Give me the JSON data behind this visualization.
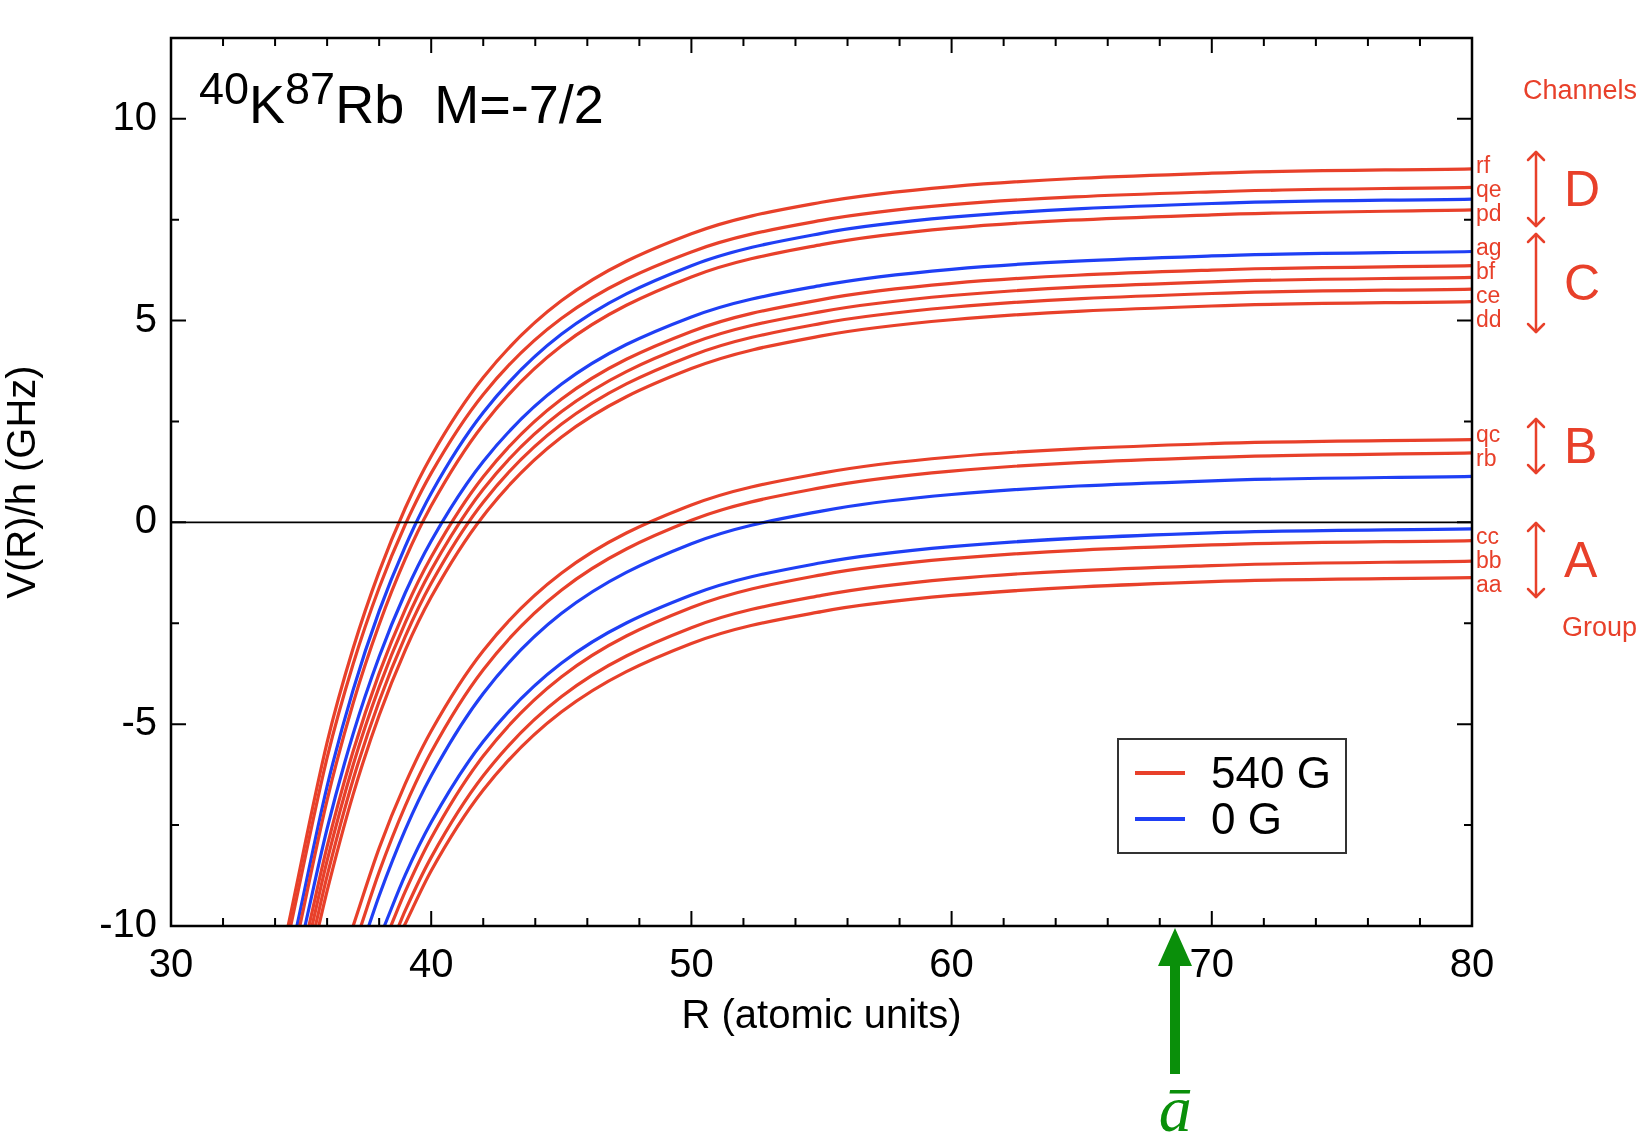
{
  "chart_data": {
    "type": "line",
    "title": "$^{40}$K$^{87}$Rb  M=-7/2",
    "xlabel": "R (atomic units)",
    "ylabel": "V(R)/h (GHz)",
    "xlim": [
      30,
      80
    ],
    "ylim": [
      -10,
      12
    ],
    "xticks": [
      30,
      {
        "value": 32,
        "label": null
      },
      {
        "value": 34,
        "label": null
      },
      {
        "value": 36,
        "label": null
      },
      {
        "value": 38,
        "label": null
      },
      40,
      {
        "value": 42,
        "label": null
      },
      {
        "value": 44,
        "label": null
      },
      {
        "value": 46,
        "label": null
      },
      {
        "value": 48,
        "label": null
      },
      50,
      {
        "value": 52,
        "label": null
      },
      {
        "value": 54,
        "label": null
      },
      {
        "value": 56,
        "label": null
      },
      {
        "value": 58,
        "label": null
      },
      60,
      {
        "value": 62,
        "label": null
      },
      {
        "value": 64,
        "label": null
      },
      {
        "value": 66,
        "label": null
      },
      {
        "value": 68,
        "label": null
      },
      70,
      {
        "value": 72,
        "label": null
      },
      {
        "value": 74,
        "label": null
      },
      {
        "value": 76,
        "label": null
      },
      {
        "value": 78,
        "label": null
      },
      80
    ],
    "yticks": [
      -10,
      {
        "value": -7.5,
        "label": null
      },
      -5,
      {
        "value": -2.5,
        "label": null
      },
      0,
      {
        "value": 2.5,
        "label": null
      },
      5,
      {
        "value": 7.5,
        "label": null
      },
      10
    ],
    "grid": false,
    "legend": "bottom right",
    "line_style": "solid",
    "ref_lines": [
      {
        "axis": "y",
        "value": 0,
        "color": "#000000"
      }
    ],
    "series": [
      {
        "name": "540 G",
        "color": "#e8402a",
        "x": [
          34.5,
          36,
          37,
          38,
          39,
          40,
          42,
          45,
          50,
          55,
          60,
          70,
          80
        ],
        "values": [
          -10,
          -5.45,
          -3.12,
          -1.22,
          0.35,
          1.64,
          3.59,
          5.49,
          7.15,
          7.93,
          8.32,
          8.65,
          8.76
        ]
      },
      {
        "color": "#e8402a",
        "x": [
          34.6,
          36,
          37,
          38,
          39,
          40,
          42,
          45,
          50,
          55,
          60,
          70,
          80
        ],
        "values": [
          -10,
          -5.83,
          -3.51,
          -1.62,
          -0.06,
          1.22,
          3.17,
          5.05,
          6.7,
          7.48,
          7.87,
          8.19,
          8.3
        ]
      },
      {
        "color": "#e8402a",
        "x": [
          34.95,
          36,
          37,
          38,
          39,
          40,
          42,
          45,
          50,
          55,
          60,
          70,
          80
        ],
        "values": [
          -10,
          -6.88,
          -4.48,
          -2.53,
          -0.91,
          0.41,
          2.42,
          4.37,
          6.08,
          6.88,
          7.29,
          7.62,
          7.74
        ]
      },
      {
        "color": "#e8402a",
        "x": [
          35.3,
          36,
          37,
          38,
          39,
          40,
          42,
          45,
          50,
          55,
          60,
          70,
          80
        ],
        "values": [
          -10,
          -8.03,
          -5.67,
          -3.74,
          -2.16,
          -0.86,
          1.13,
          3.05,
          4.73,
          5.52,
          5.92,
          6.25,
          6.36
        ]
      },
      {
        "color": "#e8402a",
        "x": [
          35.42,
          36,
          37,
          38,
          39,
          40,
          42,
          45,
          50,
          55,
          60,
          70,
          80
        ],
        "values": [
          -10,
          -8.38,
          -6.01,
          -4.08,
          -2.49,
          -1.18,
          0.82,
          2.74,
          4.43,
          5.22,
          5.62,
          5.96,
          6.07
        ]
      },
      {
        "color": "#e8402a",
        "x": [
          35.55,
          36,
          37,
          38,
          39,
          40,
          42,
          45,
          50,
          55,
          60,
          70,
          80
        ],
        "values": [
          -10,
          -8.76,
          -6.37,
          -4.43,
          -2.83,
          -1.51,
          0.5,
          2.43,
          4.13,
          4.93,
          5.33,
          5.67,
          5.78
        ]
      },
      {
        "color": "#e8402a",
        "x": [
          35.68,
          36,
          37,
          38,
          39,
          40,
          42,
          45,
          50,
          55,
          60,
          70,
          80
        ],
        "values": [
          -10,
          -9.13,
          -6.74,
          -4.78,
          -3.17,
          -1.85,
          0.16,
          2.11,
          3.81,
          4.62,
          5.02,
          5.36,
          5.47
        ]
      },
      {
        "color": "#e8402a",
        "x": [
          37.0,
          38,
          39,
          40,
          42,
          45,
          50,
          55,
          60,
          70,
          80
        ],
        "values": [
          -10,
          -8.07,
          -6.48,
          -5.17,
          -3.18,
          -1.26,
          0.43,
          1.22,
          1.62,
          1.95,
          2.05
        ]
      },
      {
        "color": "#e8402a",
        "x": [
          37.3,
          38,
          39,
          40,
          42,
          45,
          50,
          55,
          60,
          70,
          80
        ],
        "values": [
          -10,
          -8.66,
          -7.03,
          -5.69,
          -3.65,
          -1.68,
          0.05,
          0.86,
          1.27,
          1.61,
          1.72
        ]
      },
      {
        "color": "#e8402a",
        "x": [
          38.45,
          39,
          40,
          42,
          45,
          50,
          55,
          60,
          70,
          80
        ],
        "values": [
          -10,
          -9.15,
          -7.82,
          -5.79,
          -3.83,
          -2.11,
          -1.3,
          -0.9,
          -0.56,
          -0.45
        ]
      },
      {
        "color": "#e8402a",
        "x": [
          38.75,
          39,
          40,
          42,
          45,
          50,
          55,
          60,
          70,
          80
        ],
        "values": [
          -10,
          -9.62,
          -8.3,
          -6.28,
          -4.32,
          -2.61,
          -1.81,
          -1.4,
          -1.07,
          -0.96
        ]
      },
      {
        "color": "#e8402a",
        "x": [
          38.96,
          40,
          42,
          45,
          50,
          55,
          60,
          70,
          80
        ],
        "values": [
          -10,
          -8.63,
          -6.63,
          -4.7,
          -3.0,
          -2.21,
          -1.81,
          -1.47,
          -1.37
        ]
      },
      {
        "name": "0 G",
        "color": "#1f3ff5",
        "x": [
          34.84,
          36,
          37,
          38,
          39,
          40,
          42,
          45,
          50,
          55,
          60,
          70,
          80
        ],
        "values": [
          -10,
          -6.54,
          -4.15,
          -2.2,
          -0.6,
          0.72,
          2.72,
          4.66,
          6.36,
          7.16,
          7.56,
          7.9,
          8.01
        ]
      },
      {
        "color": "#1f3ff5",
        "x": [
          35.15,
          36,
          37,
          38,
          39,
          40,
          42,
          45,
          50,
          55,
          60,
          70,
          80
        ],
        "values": [
          -10,
          -7.59,
          -5.24,
          -3.33,
          -1.75,
          -0.46,
          1.51,
          3.42,
          5.09,
          5.87,
          6.27,
          6.6,
          6.71
        ]
      },
      {
        "color": "#1f3ff5",
        "x": [
          37.6,
          38,
          39,
          40,
          42,
          45,
          50,
          55,
          60,
          70,
          80
        ],
        "values": [
          -10,
          -9.25,
          -7.62,
          -6.28,
          -4.24,
          -2.26,
          -0.53,
          0.28,
          0.69,
          1.03,
          1.14
        ]
      },
      {
        "color": "#1f3ff5",
        "x": [
          38.2,
          39,
          40,
          42,
          45,
          50,
          55,
          60,
          70,
          80
        ],
        "values": [
          -10,
          -8.74,
          -7.43,
          -5.43,
          -3.49,
          -1.8,
          -1.0,
          -0.6,
          -0.26,
          -0.16
        ]
      }
    ],
    "annotations": [
      "Channels",
      "rf",
      "qe",
      "pd",
      "ag",
      "bf",
      "ce",
      "dd",
      "qc",
      "rb",
      "cc",
      "bb",
      "aa",
      "D",
      "C",
      "B",
      "A",
      "Group",
      "ā"
    ]
  }
}
